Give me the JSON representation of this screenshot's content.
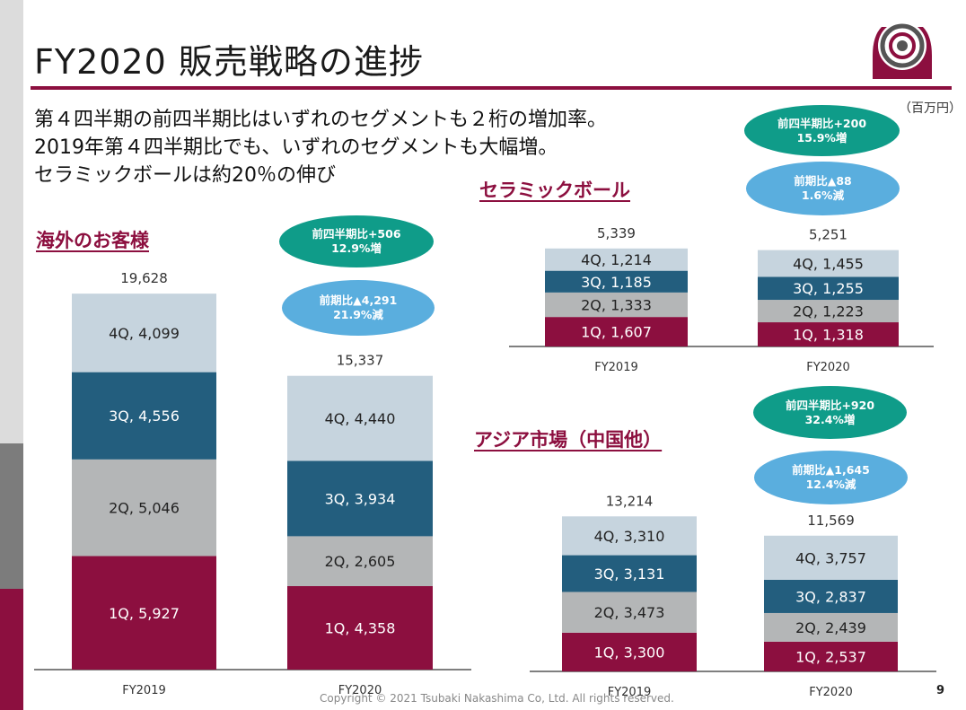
{
  "page": {
    "title": "FY2020 販売戦略の進捗",
    "unit": "（百万円）",
    "summary": [
      "第４四半期の前四半期比はいずれのセグメントも２桁の増加率。",
      "2019年第４四半期比でも、いずれのセグメントも大幅増。",
      "セラミックボールは約20％の伸び"
    ],
    "copyright": "Copyright © 2021 Tsubaki Nakashima Co, Ltd. All rights reserved.",
    "page_number": "9"
  },
  "colors": {
    "accent": "#8c0f3f",
    "Q1": "#8c0f3f",
    "Q2": "#b4b6b7",
    "Q3": "#235e7e",
    "Q4": "#c6d4de",
    "bubble_teal": "#0f9c89",
    "bubble_blue": "#5aaede"
  },
  "chart_data": [
    {
      "type": "bar",
      "stacked": true,
      "title": "海外のお客様",
      "categories": [
        "FY2019",
        "FY2020"
      ],
      "series": [
        {
          "name": "1Q",
          "values": [
            5927,
            4358
          ]
        },
        {
          "name": "2Q",
          "values": [
            5046,
            2605
          ]
        },
        {
          "name": "3Q",
          "values": [
            4556,
            3934
          ]
        },
        {
          "name": "4Q",
          "values": [
            4099,
            4440
          ]
        }
      ],
      "segment_labels": [
        [
          "1Q, 5,927",
          "2Q, 5,046",
          "3Q, 4,556",
          "4Q, 4,099"
        ],
        [
          "1Q, 4,358",
          "2Q, 2,605",
          "3Q, 3,934",
          "4Q, 4,440"
        ]
      ],
      "totals": [
        "19,628",
        "15,337"
      ],
      "bubbles": [
        {
          "line1": "前四半期比+506",
          "line2": "12.9%増",
          "color": "teal"
        },
        {
          "line1": "前期比▲4,291",
          "line2": "21.9%減",
          "color": "blue"
        }
      ]
    },
    {
      "type": "bar",
      "stacked": true,
      "title": "セラミックボール",
      "categories": [
        "FY2019",
        "FY2020"
      ],
      "series": [
        {
          "name": "1Q",
          "values": [
            1607,
            1318
          ]
        },
        {
          "name": "2Q",
          "values": [
            1333,
            1223
          ]
        },
        {
          "name": "3Q",
          "values": [
            1185,
            1255
          ]
        },
        {
          "name": "4Q",
          "values": [
            1214,
            1455
          ]
        }
      ],
      "segment_labels": [
        [
          "1Q, 1,607",
          "2Q, 1,333",
          "3Q, 1,185",
          "4Q, 1,214"
        ],
        [
          "1Q, 1,318",
          "2Q, 1,223",
          "3Q, 1,255",
          "4Q, 1,455"
        ]
      ],
      "totals": [
        "5,339",
        "5,251"
      ],
      "bubbles": [
        {
          "line1": "前四半期比+200",
          "line2": "15.9%増",
          "color": "teal"
        },
        {
          "line1": "前期比▲88",
          "line2": "1.6%減",
          "color": "blue"
        }
      ]
    },
    {
      "type": "bar",
      "stacked": true,
      "title": "アジア市場（中国他）",
      "categories": [
        "FY2019",
        "FY2020"
      ],
      "series": [
        {
          "name": "1Q",
          "values": [
            3300,
            2537
          ]
        },
        {
          "name": "2Q",
          "values": [
            3473,
            2439
          ]
        },
        {
          "name": "3Q",
          "values": [
            3131,
            2837
          ]
        },
        {
          "name": "4Q",
          "values": [
            3310,
            3757
          ]
        }
      ],
      "segment_labels": [
        [
          "1Q, 3,300",
          "2Q, 3,473",
          "3Q, 3,131",
          "4Q, 3,310"
        ],
        [
          "1Q, 2,537",
          "2Q, 2,439",
          "3Q, 2,837",
          "4Q, 3,757"
        ]
      ],
      "totals": [
        "13,214",
        "11,569"
      ],
      "bubbles": [
        {
          "line1": "前四半期比+920",
          "line2": "32.4%増",
          "color": "teal"
        },
        {
          "line1": "前期比▲1,645",
          "line2": "12.4%減",
          "color": "blue"
        }
      ]
    }
  ]
}
